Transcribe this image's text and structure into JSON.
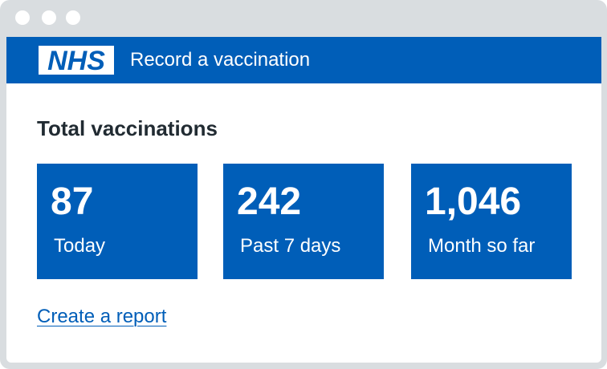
{
  "header": {
    "logo_text": "NHS",
    "service_name": "Record a vaccination"
  },
  "main": {
    "heading": "Total vaccinations",
    "cards": [
      {
        "value": "87",
        "label": "Today"
      },
      {
        "value": "242",
        "label": "Past 7 days"
      },
      {
        "value": "1,046",
        "label": "Month so far"
      }
    ],
    "report_link": "Create a report"
  },
  "colors": {
    "nhs_blue": "#005eb8",
    "text": "#212b32",
    "frame": "#d9dde0"
  }
}
